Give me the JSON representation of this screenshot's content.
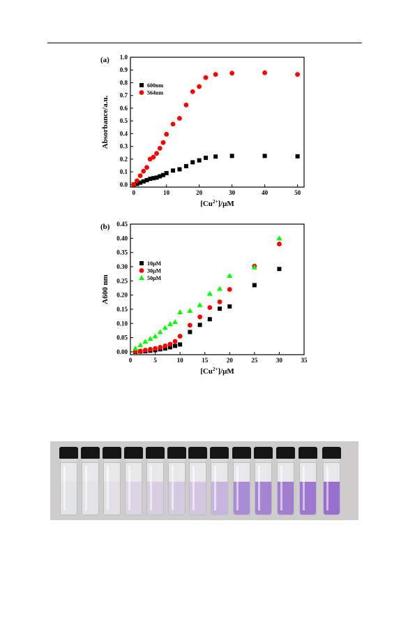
{
  "chart_data": [
    {
      "panel": "(a)",
      "type": "scatter",
      "xlabel": "[Cu2+]/μM",
      "ylabel": "Absorbance/a.u.",
      "xlim": [
        -1,
        52
      ],
      "ylim": [
        -0.02,
        1.0
      ],
      "xticks": [
        0,
        10,
        20,
        30,
        40,
        50
      ],
      "yticks": [
        0.0,
        0.1,
        0.2,
        0.3,
        0.4,
        0.5,
        0.6,
        0.7,
        0.8,
        0.9,
        1.0
      ],
      "legend_position": "left",
      "series": [
        {
          "name": "600nm",
          "marker": "square",
          "color": "#000000",
          "x": [
            0,
            1,
            2,
            3,
            4,
            5,
            6,
            7,
            8,
            9,
            10,
            12,
            14,
            16,
            18,
            20,
            22,
            25,
            30,
            40,
            50
          ],
          "y": [
            0.0,
            0.005,
            0.015,
            0.025,
            0.035,
            0.045,
            0.05,
            0.055,
            0.065,
            0.075,
            0.09,
            0.11,
            0.12,
            0.145,
            0.175,
            0.19,
            0.21,
            0.22,
            0.225,
            0.225,
            0.222
          ]
        },
        {
          "name": "564nm",
          "marker": "circle",
          "color": "#ff0000",
          "x": [
            0,
            1,
            2,
            3,
            4,
            5,
            6,
            7,
            8,
            9,
            10,
            12,
            14,
            16,
            18,
            20,
            22,
            25,
            30,
            40,
            50
          ],
          "y": [
            0.0,
            0.03,
            0.07,
            0.105,
            0.135,
            0.2,
            0.215,
            0.245,
            0.285,
            0.33,
            0.395,
            0.475,
            0.52,
            0.625,
            0.73,
            0.77,
            0.84,
            0.865,
            0.875,
            0.878,
            0.865
          ]
        }
      ]
    },
    {
      "panel": "(b)",
      "type": "scatter",
      "xlabel": "[Cu2+]/μM",
      "ylabel": "A600 nm",
      "xlim": [
        0,
        35
      ],
      "ylim": [
        -0.01,
        0.45
      ],
      "xticks": [
        0,
        5,
        10,
        15,
        20,
        25,
        30,
        35
      ],
      "yticks": [
        0.0,
        0.05,
        0.1,
        0.15,
        0.2,
        0.25,
        0.3,
        0.35,
        0.4,
        0.45
      ],
      "legend_position": "left",
      "series": [
        {
          "name": "10μM",
          "marker": "square",
          "color": "#000000",
          "x": [
            1,
            2,
            3,
            4,
            5,
            6,
            7,
            8,
            9,
            10,
            12,
            14,
            16,
            18,
            20,
            25,
            30
          ],
          "y": [
            0.0,
            0.001,
            0.002,
            0.004,
            0.006,
            0.009,
            0.012,
            0.016,
            0.021,
            0.026,
            0.07,
            0.095,
            0.115,
            0.152,
            0.16,
            0.235,
            0.292
          ]
        },
        {
          "name": "30μM",
          "marker": "circle",
          "color": "#ff0000",
          "x": [
            1,
            2,
            3,
            4,
            5,
            6,
            7,
            8,
            9,
            10,
            12,
            14,
            16,
            18,
            20,
            25,
            30
          ],
          "y": [
            0.001,
            0.003,
            0.006,
            0.009,
            0.012,
            0.016,
            0.021,
            0.027,
            0.037,
            0.055,
            0.094,
            0.123,
            0.156,
            0.176,
            0.22,
            0.302,
            0.38
          ]
        },
        {
          "name": "50μM",
          "marker": "triangle",
          "color": "#00ff00",
          "x": [
            1,
            2,
            3,
            4,
            5,
            6,
            7,
            8,
            9,
            10,
            12,
            14,
            16,
            18,
            20,
            25,
            30
          ],
          "y": [
            0.012,
            0.024,
            0.036,
            0.046,
            0.055,
            0.07,
            0.085,
            0.098,
            0.105,
            0.14,
            0.145,
            0.165,
            0.205,
            0.222,
            0.268,
            0.298,
            0.4
          ]
        }
      ]
    }
  ],
  "photo": {
    "vial_colors": [
      "#e3e4e6",
      "#e4e3e7",
      "#e2dfe6",
      "#dcd3e4",
      "#d8cde3",
      "#d6cae2",
      "#d4c6e2",
      "#c8b5df",
      "#aa8cd6",
      "#a684d4",
      "#a27ed3",
      "#9d78d1",
      "#986fcf"
    ]
  }
}
